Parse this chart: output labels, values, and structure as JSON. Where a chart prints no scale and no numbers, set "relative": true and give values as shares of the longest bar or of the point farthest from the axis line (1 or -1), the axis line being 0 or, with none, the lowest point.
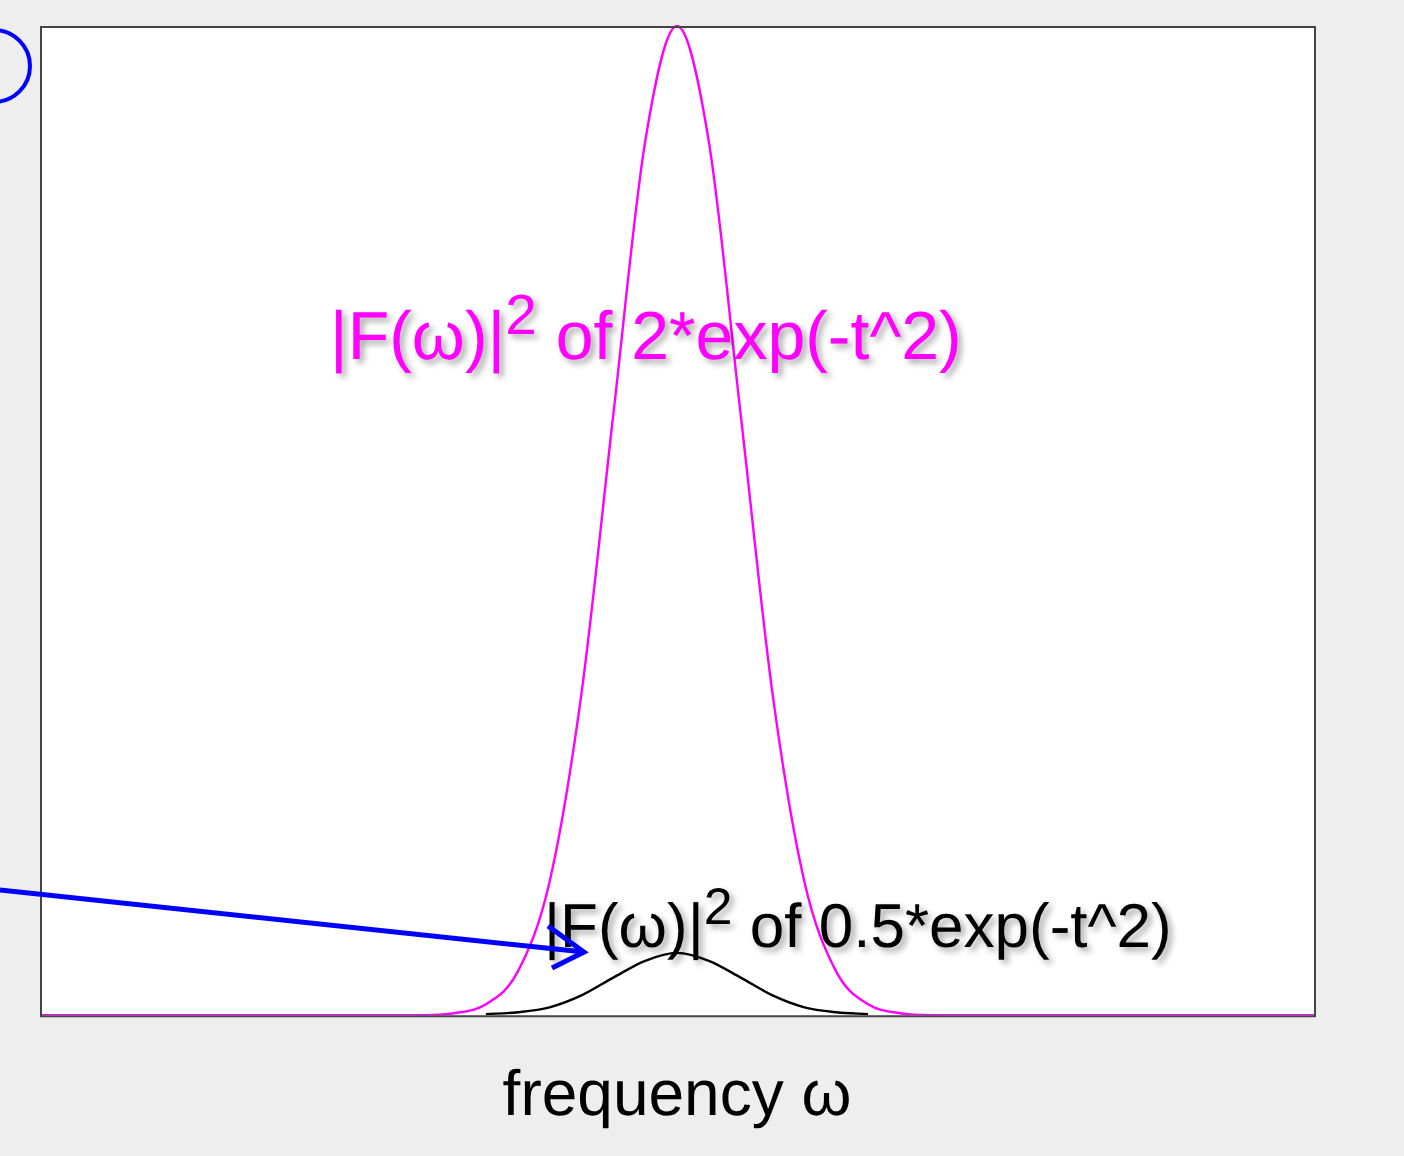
{
  "chart_data": {
    "type": "line",
    "xlabel": "frequency ω",
    "relative": true,
    "marker": "none",
    "legend": false,
    "categories": [
      null,
      null,
      null,
      null,
      null,
      null,
      null,
      null,
      null,
      null,
      null,
      null,
      null,
      null,
      null,
      null,
      null,
      null,
      null,
      null,
      null,
      null,
      null,
      null,
      null,
      null,
      null,
      null,
      null,
      null,
      null,
      null,
      null,
      null,
      null,
      null,
      null,
      null,
      null,
      null,
      null
    ],
    "series": [
      {
        "name": "|F(ω)|$^{2}$ of 2*exp(-t^2)",
        "color": "#ff00ff",
        "values": [
          0,
          0,
          0,
          0,
          0,
          0,
          0,
          0,
          0,
          0,
          0,
          0,
          0,
          0.002,
          0.011,
          0.044,
          0.135,
          0.325,
          0.607,
          0.883,
          1,
          0.883,
          0.607,
          0.325,
          0.135,
          0.044,
          0.011,
          0.002,
          0,
          0,
          0,
          0,
          0,
          0,
          0,
          0,
          0,
          0,
          0,
          0,
          0
        ]
      },
      {
        "name": "|F(ω)|$^{2}$ of 0.5*exp(-t^2)",
        "color": "#000000",
        "values": [
          null,
          null,
          null,
          null,
          null,
          null,
          null,
          null,
          null,
          null,
          null,
          null,
          null,
          null,
          0.001,
          0.003,
          0.008,
          0.02,
          0.038,
          0.055,
          0.063,
          0.055,
          0.038,
          0.02,
          0.008,
          0.003,
          0.001,
          null,
          null,
          null,
          null,
          null,
          null,
          null,
          null,
          null,
          null,
          null,
          null,
          null,
          null
        ]
      }
    ]
  }
}
